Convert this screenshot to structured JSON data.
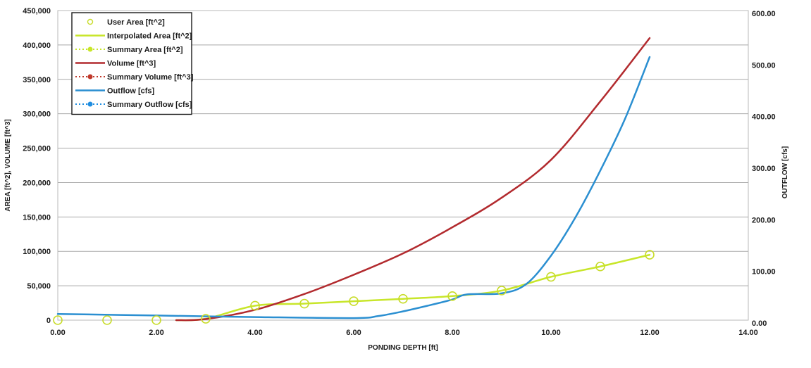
{
  "chart_data": {
    "type": "line",
    "title": "",
    "xlabel": "PONDING DEPTH [ft]",
    "ylabel_left": "AREA [ft^2], VOLUME [ft^3]",
    "ylabel_right": "OUTFLOW [cfs]",
    "xlim": [
      0,
      14
    ],
    "ylim_left": [
      0,
      450000
    ],
    "ylim_right": [
      0,
      600
    ],
    "x_ticks": [
      "0.00",
      "2.00",
      "4.00",
      "6.00",
      "8.00",
      "10.00",
      "12.00",
      "14.00"
    ],
    "y_left_ticks": [
      "0",
      "50,000",
      "100,000",
      "150,000",
      "200,000",
      "250,000",
      "300,000",
      "350,000",
      "400,000",
      "450,000"
    ],
    "y_right_ticks": [
      "0.00",
      "100.00",
      "200.00",
      "300.00",
      "400.00",
      "500.00",
      "600.00"
    ],
    "grid": true,
    "legend_position": "top-left",
    "legend": [
      {
        "label": "User Area [ft^2]",
        "style": "marker-circle",
        "color": "#c8dc2a"
      },
      {
        "label": "Interpolated Area [ft^2]",
        "style": "solid",
        "color": "#c8e62a"
      },
      {
        "label": "Summary Area [ft^2]",
        "style": "dotted-marker",
        "color": "#c8e62a"
      },
      {
        "label": "Volume [ft^3]",
        "style": "solid",
        "color": "#b22a2e"
      },
      {
        "label": "Summary Volume [ft^3]",
        "style": "dotted-marker",
        "color": "#c0392b"
      },
      {
        "label": "Outflow [cfs]",
        "style": "solid",
        "color": "#2b8fd1"
      },
      {
        "label": "Summary Outflow [cfs]",
        "style": "dotted-marker",
        "color": "#1f8de0"
      }
    ],
    "series": [
      {
        "label": "User Area [ft^2]",
        "axis": "left",
        "color": "#c8dc2a",
        "style": "markers",
        "x": [
          0,
          1,
          2,
          3,
          4,
          5,
          6,
          7,
          8,
          9,
          10,
          11,
          12
        ],
        "y": [
          0,
          0,
          0,
          2000,
          21000,
          24000,
          27500,
          31000,
          35000,
          43000,
          63000,
          78000,
          95000
        ]
      },
      {
        "label": "Interpolated Area [ft^2]",
        "axis": "left",
        "color": "#c8e62a",
        "style": "line",
        "x": [
          2.4,
          3,
          4,
          5,
          6,
          7,
          8,
          9,
          10,
          11,
          12
        ],
        "y": [
          0,
          2000,
          21000,
          24000,
          27500,
          31000,
          35000,
          43000,
          63000,
          78000,
          95000
        ]
      },
      {
        "label": "Volume [ft^3]",
        "axis": "left",
        "color": "#b22a2e",
        "style": "line",
        "x": [
          2.4,
          3,
          4,
          5,
          6,
          7,
          8,
          9,
          10,
          11,
          12
        ],
        "y": [
          0,
          1500,
          15000,
          38000,
          66000,
          97000,
          135000,
          178000,
          233000,
          318000,
          410000
        ]
      },
      {
        "label": "Outflow [cfs]",
        "axis": "right",
        "color": "#2b8fd1",
        "style": "line",
        "x": [
          0,
          2,
          4,
          6,
          6.5,
          7,
          7.5,
          8,
          8.3,
          9,
          9.5,
          10,
          10.5,
          11,
          11.5,
          12
        ],
        "y": [
          12,
          9,
          6,
          4,
          8,
          17,
          28,
          40,
          50,
          52,
          70,
          125,
          200,
          290,
          390,
          510
        ]
      }
    ]
  }
}
